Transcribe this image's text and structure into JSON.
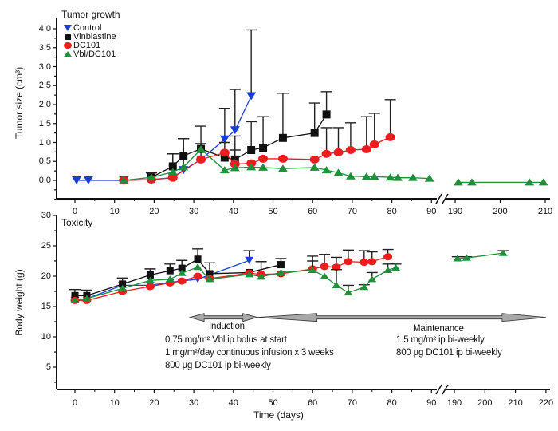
{
  "chart_data": [
    {
      "type": "line",
      "title": "Tumor growth",
      "ylabel": "Tumor size (cm³)",
      "xlabel": "",
      "ylim": [
        -0.5,
        4.2
      ],
      "yticks": [
        "0.0",
        "0.5",
        "1.0",
        "1.5",
        "2.0",
        "2.5",
        "3.0",
        "3.5",
        "4.0"
      ],
      "xticks": [
        "0",
        "10",
        "20",
        "30",
        "40",
        "50",
        "60",
        "70",
        "80",
        "90",
        "190",
        "200",
        "210"
      ],
      "axis_break": [
        90,
        190
      ],
      "legend_position": "top-left",
      "series": [
        {
          "name": "Control",
          "color": "#1a3fd6",
          "marker": "triangle-down",
          "points": [
            [
              0.4,
              0,
              null
            ],
            [
              3.4,
              0,
              null
            ],
            [
              12.3,
              0,
              null
            ],
            [
              19.3,
              0.02,
              0.2
            ],
            [
              24.7,
              0.07,
              0.7
            ],
            [
              27.4,
              0.27,
              1.1
            ],
            [
              31.8,
              0.55,
              0.97
            ],
            [
              37.8,
              1.08,
              1.9
            ],
            [
              40.4,
              1.32,
              2.4
            ],
            [
              44.5,
              2.22,
              3.97
            ]
          ]
        },
        {
          "name": "Vinblastine",
          "color": "#111111",
          "marker": "square",
          "points": [
            [
              19.3,
              0.08,
              0.2
            ],
            [
              24.7,
              0.37,
              0.7
            ],
            [
              27.4,
              0.65,
              1.1
            ],
            [
              31.8,
              0.83,
              1.43
            ],
            [
              37.8,
              0.6,
              1.0
            ],
            [
              40.4,
              0.55,
              1.17
            ],
            [
              44.5,
              0.8,
              1.55
            ],
            [
              47.5,
              0.86,
              1.68
            ],
            [
              52.5,
              1.12,
              2.3
            ],
            [
              60.5,
              1.25,
              2.04
            ],
            [
              63.5,
              1.74,
              2.34
            ]
          ]
        },
        {
          "name": "DC101",
          "color": "#ee1c1c",
          "marker": "circle",
          "points": [
            [
              12.3,
              0,
              null
            ],
            [
              19.3,
              0.02,
              null
            ],
            [
              24.7,
              0.07,
              null
            ],
            [
              31.8,
              0.55,
              null
            ],
            [
              37.8,
              0.73,
              null
            ],
            [
              40.4,
              0.43,
              0.8
            ],
            [
              44.5,
              0.45,
              null
            ],
            [
              47.5,
              0.57,
              null
            ],
            [
              52.5,
              0.57,
              null
            ],
            [
              60.5,
              0.55,
              null
            ],
            [
              63.5,
              0.7,
              1.39
            ],
            [
              66.5,
              0.74,
              1.39
            ],
            [
              69.6,
              0.8,
              1.52
            ],
            [
              73.6,
              0.82,
              1.68
            ],
            [
              75.6,
              0.95,
              1.77
            ],
            [
              79.6,
              1.14,
              2.13
            ]
          ]
        },
        {
          "name": "Vbl/DC101",
          "color": "#1f8f3a",
          "marker": "triangle-up",
          "points": [
            [
              12.3,
              0,
              null
            ],
            [
              19.3,
              0.08,
              null
            ],
            [
              24.7,
              0.22,
              null
            ],
            [
              27.4,
              0.35,
              null
            ],
            [
              31.8,
              0.82,
              null
            ],
            [
              37.8,
              0.27,
              null
            ],
            [
              40.4,
              0.33,
              null
            ],
            [
              44.5,
              0.35,
              null
            ],
            [
              47.5,
              0.34,
              null
            ],
            [
              52.5,
              0.31,
              null
            ],
            [
              60.5,
              0.34,
              null
            ],
            [
              63.5,
              0.27,
              null
            ],
            [
              66.5,
              0.2,
              null
            ],
            [
              69.6,
              0.11,
              null
            ],
            [
              73.6,
              0.1,
              null
            ],
            [
              75.6,
              0.1,
              null
            ],
            [
              79.6,
              0.08,
              null
            ],
            [
              81.5,
              0.07,
              null
            ],
            [
              85.3,
              0.07,
              null
            ],
            [
              89.5,
              0.05,
              null
            ],
            [
              190.7,
              -0.05,
              null
            ],
            [
              193.7,
              -0.05,
              null
            ],
            [
              206.5,
              -0.05,
              null
            ],
            [
              209.6,
              -0.05,
              null
            ]
          ]
        }
      ]
    },
    {
      "type": "line",
      "title": "Toxicity",
      "ylabel": "Body weight (g)",
      "xlabel": "Time (days)",
      "ylim": [
        1.5,
        30
      ],
      "yticks": [
        "5",
        "10",
        "15",
        "20",
        "25",
        "30"
      ],
      "xticks": [
        "0",
        "10",
        "20",
        "30",
        "40",
        "50",
        "60",
        "70",
        "80",
        "90",
        "190",
        "200",
        "210",
        "220"
      ],
      "axis_break": [
        90,
        190
      ],
      "series": [
        {
          "name": "Control",
          "color": "#1a3fd6",
          "marker": "triangle-down",
          "points": [
            [
              0,
              16.0,
              null
            ],
            [
              3,
              16.3,
              null
            ],
            [
              12,
              18.5,
              null
            ],
            [
              19,
              18.5,
              null
            ],
            [
              24,
              19.0,
              null
            ],
            [
              31,
              19.5,
              null
            ],
            [
              34,
              20.2,
              null
            ],
            [
              44,
              22.6,
              24.2
            ]
          ]
        },
        {
          "name": "Vinblastine",
          "color": "#111111",
          "marker": "square",
          "points": [
            [
              0,
              16.8,
              17.8
            ],
            [
              3,
              16.8,
              17.7
            ],
            [
              12,
              18.7,
              19.7
            ],
            [
              19,
              20.2,
              21.2
            ],
            [
              24,
              20.9,
              22.0
            ],
            [
              27,
              21.3,
              22.6
            ],
            [
              31,
              22.8,
              24.5
            ],
            [
              34,
              20.4,
              22.2
            ],
            [
              44,
              20.6,
              null
            ],
            [
              52,
              21.9,
              22.9
            ]
          ]
        },
        {
          "name": "DC101",
          "color": "#ee1c1c",
          "marker": "circle",
          "points": [
            [
              0,
              16.0,
              null
            ],
            [
              3,
              16.0,
              null
            ],
            [
              12,
              17.5,
              null
            ],
            [
              19,
              18.3,
              null
            ],
            [
              24,
              18.9,
              null
            ],
            [
              27,
              19.2,
              null
            ],
            [
              31,
              20.0,
              null
            ],
            [
              34,
              19.6,
              null
            ],
            [
              44,
              20.5,
              null
            ],
            [
              47,
              20.3,
              22.4
            ],
            [
              52,
              20.4,
              null
            ],
            [
              60,
              21.2,
              23.3
            ],
            [
              63,
              21.6,
              23.6
            ],
            [
              66,
              21.5,
              23.1
            ],
            [
              69,
              22.4,
              24.3
            ],
            [
              73,
              22.3,
              24.2
            ],
            [
              75,
              22.4,
              24.0
            ],
            [
              79,
              23.2,
              24.4
            ]
          ]
        },
        {
          "name": "Vbl/DC101",
          "color": "#1f8f3a",
          "marker": "triangle-up",
          "points": [
            [
              0,
              16.0,
              null
            ],
            [
              3,
              16.3,
              null
            ],
            [
              12,
              18.0,
              null
            ],
            [
              19,
              19.3,
              null
            ],
            [
              24,
              19.5,
              null
            ],
            [
              27,
              20.5,
              null
            ],
            [
              31,
              21.5,
              null
            ],
            [
              34,
              19.5,
              null
            ],
            [
              44,
              20.3,
              null
            ],
            [
              47,
              19.9,
              null
            ],
            [
              52,
              20.6,
              null
            ],
            [
              60,
              21.0,
              22.5
            ],
            [
              63,
              20.0,
              null
            ],
            [
              66,
              18.5,
              21.1
            ],
            [
              69,
              17.3,
              18.5
            ],
            [
              73,
              18.2,
              18.6
            ],
            [
              75,
              19.5,
              20.6
            ],
            [
              79,
              21.0,
              22.0
            ],
            [
              81,
              21.4,
              22.0
            ],
            [
              191,
              22.9,
              23.2
            ],
            [
              194,
              23.0,
              23.2
            ],
            [
              206,
              23.8,
              24.2
            ]
          ]
        }
      ],
      "annotations": {
        "induction_label": "Induction",
        "induction_lines": [
          "0.75 mg/m² Vbl ip bolus at start",
          "1 mg/m²/day continuous infusion x 3 weeks",
          "800 µg DC101 ip bi-weekly"
        ],
        "maintenance_label": "Maintenance",
        "maintenance_lines": [
          "1.5 mg/m² ip bi-weekly",
          "800 µg DC101 ip bi-weekly"
        ],
        "induction_range_days": [
          29,
          46
        ],
        "maintenance_range_days": [
          46,
          220
        ]
      }
    }
  ]
}
